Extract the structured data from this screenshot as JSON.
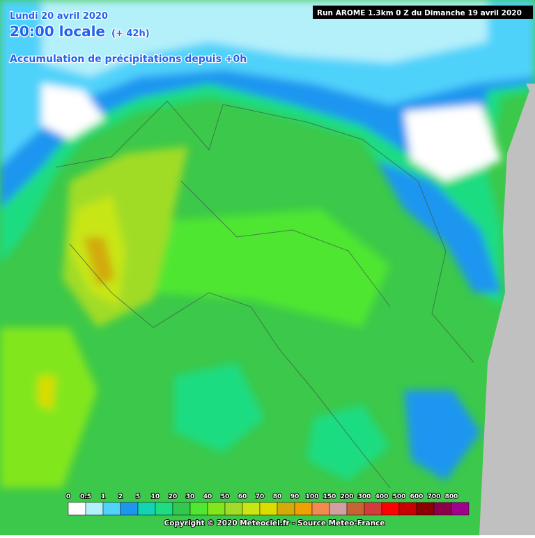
{
  "header": {
    "date": "Lundi 20 avril 2020",
    "time": "20:00 locale",
    "offset": "(+ 42h)",
    "subtitle": "Accumulation de précipitations depuis +0h",
    "run": "Run AROME 1.3km 0 Z du Dimanche 19 avril 2020"
  },
  "legend": [
    {
      "label": "0",
      "color": "#ffffff"
    },
    {
      "label": "0.5",
      "color": "#b4f0fa"
    },
    {
      "label": "1",
      "color": "#50d2fa"
    },
    {
      "label": "2",
      "color": "#1e96f0"
    },
    {
      "label": "5",
      "color": "#14d2b4"
    },
    {
      "label": "10",
      "color": "#1edc82"
    },
    {
      "label": "20",
      "color": "#32c850"
    },
    {
      "label": "30",
      "color": "#50e632"
    },
    {
      "label": "40",
      "color": "#82e61e"
    },
    {
      "label": "50",
      "color": "#a0dc28"
    },
    {
      "label": "60",
      "color": "#c8e614"
    },
    {
      "label": "70",
      "color": "#dcdc00"
    },
    {
      "label": "80",
      "color": "#d2aa0a"
    },
    {
      "label": "90",
      "color": "#f0a000"
    },
    {
      "label": "100",
      "color": "#f08c50"
    },
    {
      "label": "150",
      "color": "#d2a0a0"
    },
    {
      "label": "200",
      "color": "#c86432"
    },
    {
      "label": "300",
      "color": "#d23c3c"
    },
    {
      "label": "400",
      "color": "#ff0000"
    },
    {
      "label": "500",
      "color": "#c80000"
    },
    {
      "label": "600",
      "color": "#8c0000"
    },
    {
      "label": "700",
      "color": "#8c004b"
    },
    {
      "label": "800",
      "color": "#a0008c"
    }
  ],
  "copyright": "Copyright © 2020 Meteociel.fr - Source Meteo-France"
}
